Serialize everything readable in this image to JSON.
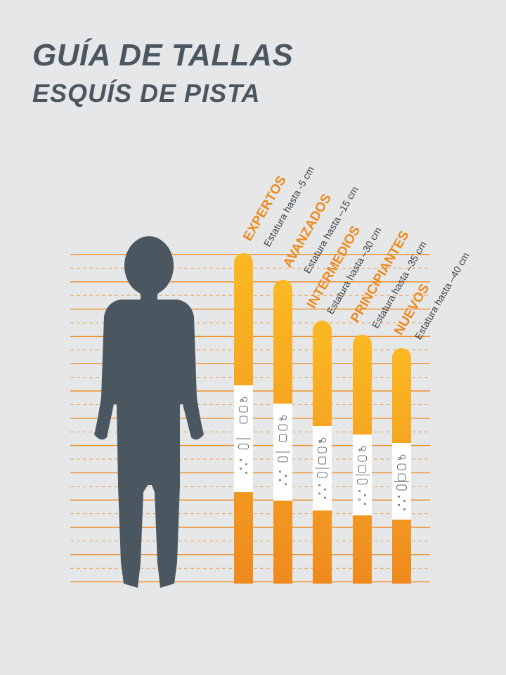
{
  "header": {
    "title": "GUÍA DE TALLAS",
    "subtitle": "ESQUÍS DE PISTA"
  },
  "colors": {
    "background": "#e6e7e8",
    "text_dark": "#4a5660",
    "silhouette": "#4a5660",
    "ski_orange": "#ee8a1f",
    "ski_yellow": "#fbb923",
    "guide_line": "#ee8a1f"
  },
  "skis": [
    {
      "level": "EXPERTOS",
      "height_note": "Estatura hasta -5 cm"
    },
    {
      "level": "AVANZADOS",
      "height_note": "Estatura hasta –15 cm"
    },
    {
      "level": "INTERMEDIOS",
      "height_note": "Estatura hasta –30 cm"
    },
    {
      "level": "PRINCIPIANTES",
      "height_note": "Estatura hasta –35 cm"
    },
    {
      "level": "NUEVOS",
      "height_note": "Estatura hasta –40 cm"
    }
  ]
}
